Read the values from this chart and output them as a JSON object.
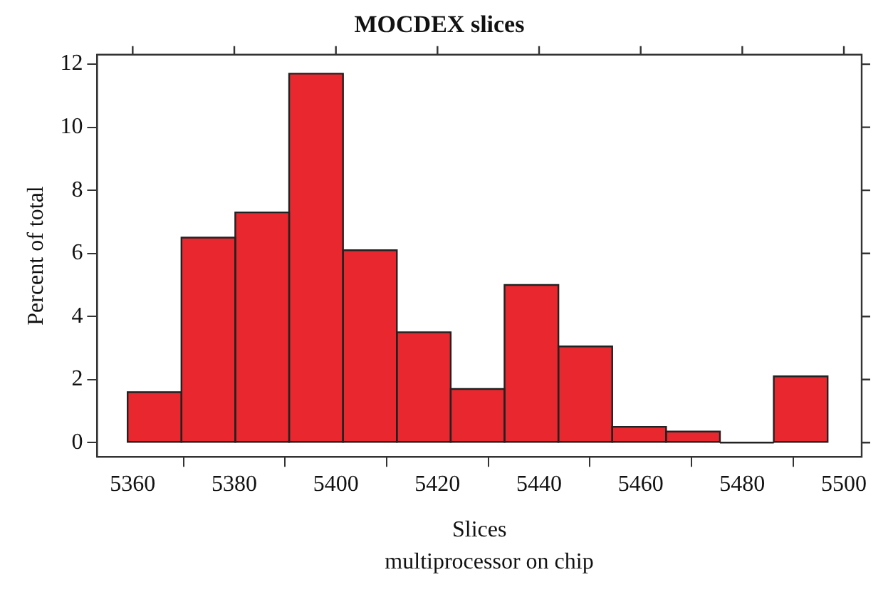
{
  "chart_data": {
    "type": "histogram",
    "title": "MOCDEX slices",
    "xlabel": "Slices",
    "ylabel": "Percent of total",
    "annotations": [
      "multiprocessor on chip"
    ],
    "bins": [
      5359,
      5369.6,
      5380.2,
      5390.8,
      5401.4,
      5412,
      5422.6,
      5433.2,
      5443.8,
      5454.4,
      5465,
      5475.6,
      5486.2,
      5496.8
    ],
    "values": [
      1.6,
      6.5,
      7.3,
      11.7,
      6.1,
      3.5,
      1.7,
      5.0,
      3.05,
      0.5,
      0.35,
      0,
      2.1
    ],
    "color": "#e8282e",
    "xlim": [
      5353,
      5503.5
    ],
    "xticks": [
      5360,
      5380,
      5400,
      5420,
      5440,
      5460,
      5480,
      5500
    ],
    "ylim": [
      -0.45,
      12.3
    ],
    "yticks": [
      0,
      2,
      4,
      6,
      8,
      10,
      12
    ],
    "grid": false,
    "legend": false
  }
}
